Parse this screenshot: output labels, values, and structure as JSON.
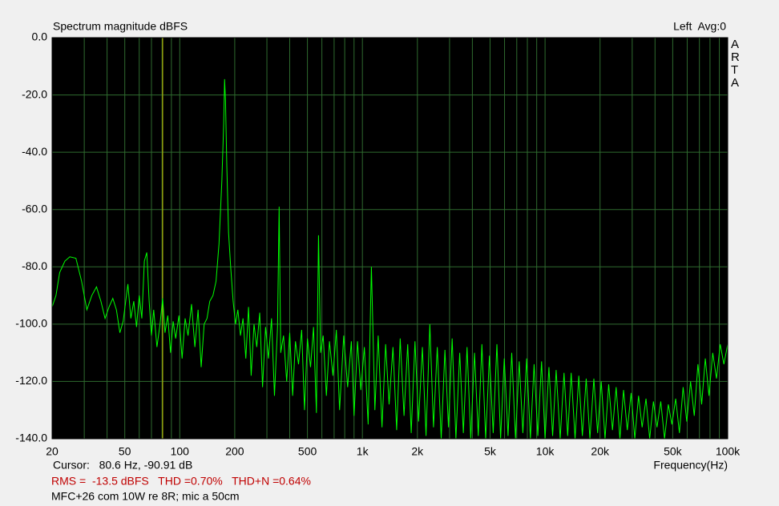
{
  "chart_data": {
    "type": "line",
    "title": "Spectrum magnitude dBFS",
    "channel_label": "Left  Avg:0",
    "brand": "ARTA",
    "xlabel": "Frequency(Hz)",
    "cursor": {
      "x": 80.6,
      "text": "Cursor:   80.6 Hz, -90.91 dB"
    },
    "stats": "RMS =  -13.5 dBFS   THD =0.70%   THD+N =0.64%",
    "note": "MFC+26 com 10W re 8R; mic a 50cm",
    "xscale": "log",
    "grid": true,
    "background": "#000000",
    "grid_color": "#2f6b2f",
    "cursor_color": "#c8c800",
    "xlim": [
      20,
      100000
    ],
    "ylim": [
      -140,
      0
    ],
    "xticks": [
      20,
      50,
      100,
      200,
      500,
      {
        "value": 1000,
        "label": "1k"
      },
      {
        "value": 2000,
        "label": "2k"
      },
      {
        "value": 5000,
        "label": "5k"
      },
      {
        "value": 10000,
        "label": "10k"
      },
      {
        "value": 20000,
        "label": "20k"
      },
      {
        "value": 50000,
        "label": "50k"
      },
      {
        "value": 100000,
        "label": "100k"
      }
    ],
    "xminorticks": [
      30,
      40,
      60,
      70,
      80,
      90,
      300,
      400,
      600,
      700,
      800,
      900,
      3000,
      4000,
      6000,
      7000,
      8000,
      9000,
      30000,
      40000,
      60000,
      70000,
      80000,
      90000
    ],
    "yticks": [
      {
        "value": 0,
        "label": "0.0"
      },
      {
        "value": -20,
        "label": "-20.0"
      },
      {
        "value": -40,
        "label": "-40.0"
      },
      {
        "value": -60,
        "label": "-60.0"
      },
      {
        "value": -80,
        "label": "-80.0"
      },
      {
        "value": -100,
        "label": "-100.0"
      },
      {
        "value": -120,
        "label": "-120.0"
      },
      {
        "value": -140,
        "label": "-140.0"
      }
    ],
    "x": [
      20,
      21,
      22,
      23.5,
      25,
      27,
      29,
      31,
      33,
      35,
      37,
      39,
      41,
      43,
      45,
      47,
      49,
      52,
      54,
      56,
      58,
      60,
      62,
      64,
      66,
      68,
      70,
      72,
      75,
      78,
      80.6,
      83,
      86,
      89,
      92,
      95,
      99,
      103,
      107,
      111,
      116,
      121,
      126,
      131,
      136,
      141,
      146,
      152,
      158,
      164,
      170,
      174,
      176,
      178,
      181,
      185,
      190,
      196,
      202,
      208,
      215,
      222,
      230,
      238,
      246,
      255,
      264,
      274,
      284,
      295,
      306,
      318,
      330,
      343,
      350,
      357,
      370,
      385,
      400,
      415,
      430,
      447,
      465,
      482,
      500,
      520,
      540,
      560,
      575,
      590,
      610,
      635,
      660,
      690,
      720,
      750,
      790,
      830,
      870,
      900,
      940,
      980,
      1025,
      1075,
      1120,
      1170,
      1220,
      1280,
      1340,
      1400,
      1470,
      1540,
      1610,
      1690,
      1770,
      1850,
      1940,
      2030,
      2130,
      2230,
      2340,
      2450,
      2570,
      2700,
      2830,
      2960,
      3100,
      3250,
      3410,
      3570,
      3740,
      3920,
      4110,
      4310,
      4510,
      4730,
      4960,
      5200,
      5450,
      5710,
      5980,
      6270,
      6570,
      6890,
      7220,
      7560,
      7930,
      8310,
      8710,
      9130,
      9570,
      10000,
      10500,
      11000,
      11500,
      12100,
      12700,
      13300,
      13900,
      14600,
      15300,
      16000,
      16800,
      17600,
      18500,
      19400,
      20300,
      21300,
      22300,
      23400,
      24500,
      25700,
      26900,
      28200,
      29600,
      31000,
      32500,
      34000,
      35700,
      37400,
      39200,
      41000,
      43000,
      45100,
      47300,
      49500,
      51900,
      54400,
      57000,
      59700,
      62600,
      65600,
      68700,
      72000,
      75400,
      79000,
      82800,
      86800,
      91000,
      95300,
      100000
    ],
    "series": [
      {
        "color": "#00ff00",
        "values": [
          -94,
          -90,
          -82,
          -78,
          -76.5,
          -77,
          -85,
          -95,
          -90,
          -87,
          -92,
          -98,
          -94,
          -91,
          -95,
          -103,
          -99,
          -86,
          -98,
          -92,
          -101,
          -90,
          -98,
          -78,
          -75,
          -92,
          -104,
          -95,
          -108,
          -100,
          -91,
          -103,
          -97,
          -110,
          -99,
          -105,
          -97,
          -112,
          -98,
          -104,
          -93,
          -108,
          -95,
          -115,
          -100,
          -98,
          -92,
          -90,
          -85,
          -72,
          -50,
          -30,
          -14.5,
          -22,
          -45,
          -68,
          -80,
          -92,
          -100,
          -95,
          -104,
          -98,
          -112,
          -94,
          -118,
          -100,
          -108,
          -96,
          -122,
          -101,
          -112,
          -98,
          -125,
          -101,
          -59,
          -110,
          -104,
          -120,
          -103,
          -125,
          -106,
          -114,
          -102,
          -130,
          -105,
          -115,
          -101,
          -131,
          -69,
          -110,
          -104,
          -125,
          -106,
          -118,
          -102,
          -130,
          -104,
          -122,
          -106,
          -132,
          -106,
          -123,
          -108,
          -135,
          -80,
          -130,
          -104,
          -136,
          -107,
          -128,
          -108,
          -137,
          -105,
          -132,
          -107,
          -138,
          -106,
          -134,
          -108,
          -139,
          -100,
          -136,
          -108,
          -140,
          -109,
          -136,
          -105,
          -140,
          -110,
          -138,
          -108,
          -140,
          -110,
          -139,
          -107,
          -140,
          -111,
          -138,
          -107,
          -140,
          -112,
          -139,
          -110,
          -140,
          -113,
          -138,
          -112,
          -140,
          -114,
          -139,
          -113,
          -140,
          -115,
          -139,
          -116,
          -140,
          -117,
          -139,
          -117,
          -140,
          -118,
          -139,
          -119,
          -140,
          -119,
          -138,
          -120,
          -140,
          -121,
          -137,
          -122,
          -140,
          -123,
          -137,
          -124,
          -140,
          -125,
          -136,
          -126,
          -140,
          -127,
          -136,
          -127,
          -140,
          -128,
          -135,
          -126,
          -138,
          -122,
          -134,
          -120,
          -132,
          -114,
          -128,
          -112,
          -125,
          -110,
          -119,
          -107,
          -114,
          -107
        ]
      }
    ]
  }
}
